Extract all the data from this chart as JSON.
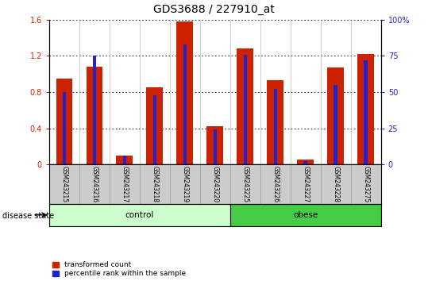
{
  "title": "GDS3688 / 227910_at",
  "samples": [
    "GSM243215",
    "GSM243216",
    "GSM243217",
    "GSM243218",
    "GSM243219",
    "GSM243220",
    "GSM243225",
    "GSM243226",
    "GSM243227",
    "GSM243228",
    "GSM243275"
  ],
  "transformed_count": [
    0.95,
    1.08,
    0.1,
    0.85,
    1.58,
    0.42,
    1.28,
    0.93,
    0.05,
    1.07,
    1.22
  ],
  "percentile_pct": [
    50,
    75,
    6,
    48,
    83,
    24,
    76,
    52,
    2,
    55,
    72
  ],
  "groups": [
    {
      "label": "control",
      "start": 0,
      "end": 6,
      "color": "#ccffcc"
    },
    {
      "label": "obese",
      "start": 6,
      "end": 11,
      "color": "#44cc44"
    }
  ],
  "group_label": "disease state",
  "ylim_left": [
    0,
    1.6
  ],
  "ylim_right": [
    0,
    100
  ],
  "yticks_left": [
    0,
    0.4,
    0.8,
    1.2,
    1.6
  ],
  "ytick_labels_left": [
    "0",
    "0.4",
    "0.8",
    "1.2",
    "1.6"
  ],
  "yticks_right": [
    0,
    25,
    50,
    75,
    100
  ],
  "ytick_labels_right": [
    "0",
    "25",
    "50",
    "75",
    "100%"
  ],
  "bar_color_red": "#cc2200",
  "bar_color_blue": "#2222cc",
  "tick_label_area_color": "#cccccc",
  "legend_red_label": "transformed count",
  "legend_blue_label": "percentile rank within the sample",
  "title_fontsize": 10,
  "tick_fontsize": 7,
  "sample_fontsize": 5.5
}
